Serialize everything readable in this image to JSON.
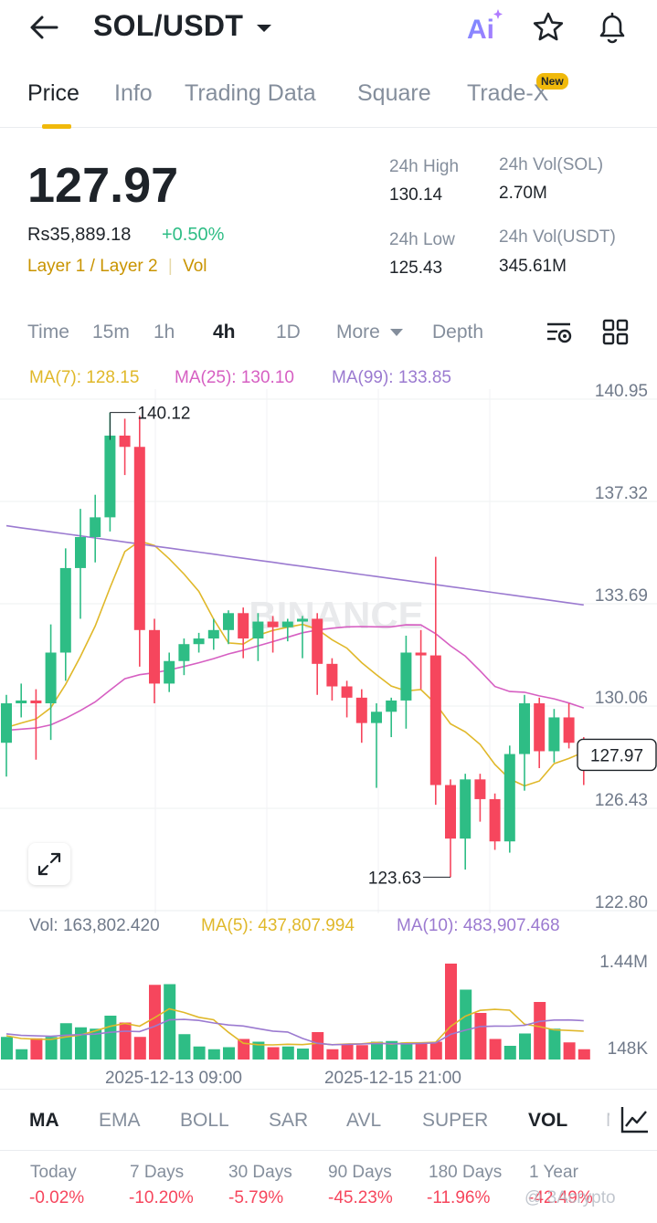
{
  "header": {
    "back_icon": "arrow-left-icon",
    "pair": "SOL/USDT",
    "ai_label": "Ai"
  },
  "tabs": [
    {
      "label": "Price",
      "active": true
    },
    {
      "label": "Info"
    },
    {
      "label": "Trading Data"
    },
    {
      "label": "Square"
    },
    {
      "label": "Trade-X",
      "badge": "New"
    }
  ],
  "ticker": {
    "last_price": "127.97",
    "fiat_price": "Rs35,889.18",
    "change_pct": "+0.50%",
    "tags": "Layer 1 / Layer 2",
    "tag_vol": "Vol",
    "high_label": "24h High",
    "high": "130.14",
    "low_label": "24h Low",
    "low": "125.43",
    "vol_sol_label": "24h Vol(SOL)",
    "vol_sol": "2.70M",
    "vol_usdt_label": "24h Vol(USDT)",
    "vol_usdt": "345.61M"
  },
  "timeframes": [
    "Time",
    "15m",
    "1h",
    "4h",
    "1D",
    "More",
    "Depth"
  ],
  "active_timeframe": "4h",
  "moving_averages": {
    "ma7": "MA(7): 128.15",
    "ma25": "MA(25): 130.10",
    "ma99": "MA(99): 133.85"
  },
  "volume_info": {
    "vol": "Vol: 163,802.420",
    "ma5": "MA(5): 437,807.994",
    "ma10": "MA(10): 483,907.468"
  },
  "colors": {
    "up": "#2ebd85",
    "down": "#f6465d",
    "ma7": "#e0b82a",
    "ma25": "#d65fc2",
    "ma99": "#9b7ad0",
    "accent": "#f0b90b"
  },
  "watermark": "BINANCE",
  "chart_data": {
    "type": "candlestick",
    "interval": "4h",
    "y_ticks": [
      "140.95",
      "137.32",
      "133.69",
      "130.06",
      "126.43",
      "122.80"
    ],
    "ylim": [
      122.8,
      140.95
    ],
    "current_price_tag": "127.97",
    "annotations": {
      "high": "140.12",
      "low": "123.63"
    },
    "x_labels": [
      "2025-12-13 09:00",
      "2025-12-15 21:00"
    ],
    "candles": [
      [
        128.4,
        130.1,
        127.2,
        129.8
      ],
      [
        129.8,
        130.5,
        129.3,
        129.9
      ],
      [
        129.9,
        130.3,
        127.8,
        129.8
      ],
      [
        129.8,
        132.6,
        128.5,
        131.6
      ],
      [
        131.6,
        135.3,
        130.6,
        134.6
      ],
      [
        134.6,
        136.7,
        132.8,
        135.7
      ],
      [
        135.7,
        137.2,
        134.8,
        136.4
      ],
      [
        136.4,
        140.12,
        135.9,
        139.3
      ],
      [
        139.3,
        139.9,
        137.9,
        138.9
      ],
      [
        138.9,
        140.0,
        131.1,
        132.4
      ],
      [
        132.4,
        132.8,
        129.8,
        130.5
      ],
      [
        130.5,
        131.6,
        130.2,
        131.3
      ],
      [
        131.3,
        132.1,
        130.8,
        131.9
      ],
      [
        131.9,
        132.3,
        131.6,
        132.1
      ],
      [
        132.1,
        132.8,
        131.7,
        132.4
      ],
      [
        132.4,
        133.1,
        131.9,
        133.0
      ],
      [
        133.0,
        133.2,
        131.4,
        132.1
      ],
      [
        132.1,
        133.0,
        131.3,
        132.7
      ],
      [
        132.7,
        132.9,
        131.6,
        132.5
      ],
      [
        132.5,
        132.8,
        132.0,
        132.7
      ],
      [
        132.7,
        132.9,
        131.4,
        132.8
      ],
      [
        132.8,
        133.0,
        130.1,
        131.2
      ],
      [
        131.2,
        131.4,
        129.9,
        130.4
      ],
      [
        130.4,
        130.6,
        129.3,
        130.0
      ],
      [
        130.0,
        130.3,
        128.4,
        129.1
      ],
      [
        129.1,
        129.8,
        126.8,
        129.5
      ],
      [
        129.5,
        130.0,
        128.6,
        129.9
      ],
      [
        129.9,
        132.2,
        128.9,
        131.6
      ],
      [
        131.6,
        132.4,
        130.3,
        131.5
      ],
      [
        131.5,
        135.0,
        126.2,
        126.9
      ],
      [
        126.9,
        127.1,
        123.63,
        125.0
      ],
      [
        125.0,
        127.3,
        123.9,
        127.1
      ],
      [
        127.1,
        127.3,
        125.6,
        126.4
      ],
      [
        126.4,
        126.6,
        124.6,
        124.9
      ],
      [
        124.9,
        128.3,
        124.5,
        128.0
      ],
      [
        128.0,
        130.1,
        126.7,
        129.8
      ],
      [
        129.8,
        130.0,
        127.5,
        128.1
      ],
      [
        128.1,
        129.6,
        127.7,
        129.3
      ],
      [
        129.3,
        129.8,
        128.2,
        128.4
      ],
      [
        128.4,
        128.6,
        126.9,
        127.97
      ]
    ],
    "volume_ylim": [
      0,
      1.6
    ],
    "volume_units": "M",
    "volume_ticks": [
      "1.44M",
      "148K"
    ],
    "volume": [
      0.33,
      0.15,
      0.31,
      0.33,
      0.53,
      0.47,
      0.45,
      0.64,
      0.54,
      0.33,
      1.09,
      1.1,
      0.37,
      0.19,
      0.15,
      0.18,
      0.3,
      0.26,
      0.18,
      0.19,
      0.16,
      0.4,
      0.15,
      0.23,
      0.21,
      0.26,
      0.27,
      0.25,
      0.23,
      0.26,
      1.4,
      1.02,
      0.68,
      0.3,
      0.2,
      0.38,
      0.84,
      0.45,
      0.25,
      0.15
    ]
  },
  "indicators": [
    "MA",
    "EMA",
    "BOLL",
    "SAR",
    "AVL",
    "SUPER",
    "VOL",
    "M"
  ],
  "performance": [
    {
      "label": "Today",
      "value": "-0.02%"
    },
    {
      "label": "7 Days",
      "value": "-10.20%"
    },
    {
      "label": "30 Days",
      "value": "-5.79%"
    },
    {
      "label": "90 Days",
      "value": "-45.23%"
    },
    {
      "label": "180 Days",
      "value": "-11.96%"
    },
    {
      "label": "1 Year",
      "value": "-42.49%"
    }
  ],
  "footer_watermark": "@ 3Acrypto"
}
